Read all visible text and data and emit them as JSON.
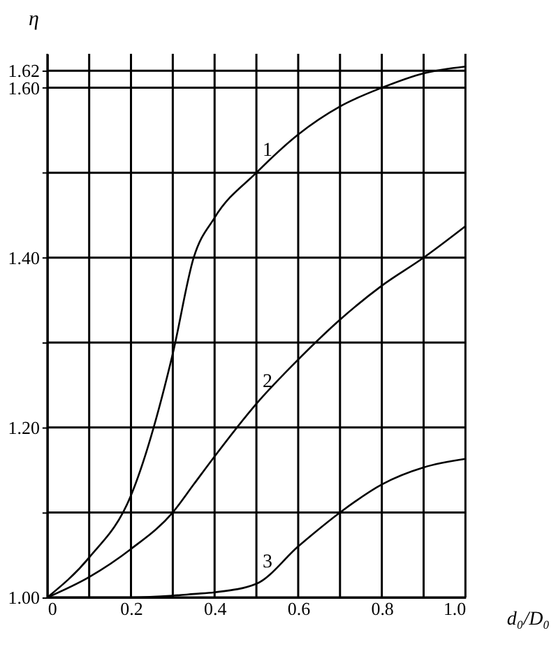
{
  "chart_data": {
    "type": "line",
    "xlabel": "d₀/D₀",
    "ylabel": "η",
    "x": [
      0,
      0.1,
      0.2,
      0.3,
      0.35,
      0.4,
      0.5,
      0.6,
      0.7,
      0.8,
      0.9,
      1.0
    ],
    "series": [
      {
        "name": "1",
        "color": "#000000",
        "values": [
          1.0,
          1.047,
          1.12,
          1.287,
          1.4,
          1.447,
          1.5,
          1.545,
          1.578,
          1.6,
          1.617,
          1.625
        ]
      },
      {
        "name": "2",
        "color": "#000000",
        "values": [
          1.0,
          1.024,
          1.057,
          1.1,
          1.133,
          1.166,
          1.228,
          1.28,
          1.327,
          1.367,
          1.4,
          1.437
        ]
      },
      {
        "name": "3",
        "color": "#000000",
        "values": [
          1.0,
          1.0,
          1.0,
          1.002,
          1.004,
          1.006,
          1.016,
          1.06,
          1.1,
          1.133,
          1.153,
          1.163
        ]
      }
    ],
    "xlim": [
      0,
      1.0
    ],
    "ylim": [
      1.0,
      1.64
    ],
    "xticks": [
      0,
      {
        "value": 0.1,
        "label": null
      },
      0.2,
      {
        "value": 0.3,
        "label": null
      },
      0.4,
      {
        "value": 0.5,
        "label": null
      },
      0.6,
      {
        "value": 0.7,
        "label": null
      },
      0.8,
      {
        "value": 0.9,
        "label": null
      },
      {
        "value": 1.0,
        "label": "1.0"
      }
    ],
    "yticks": [
      {
        "value": 1.0,
        "label": "1.00"
      },
      {
        "value": 1.1,
        "label": null
      },
      {
        "value": 1.2,
        "label": "1.20"
      },
      {
        "value": 1.3,
        "label": null
      },
      {
        "value": 1.4,
        "label": "1.40"
      },
      {
        "value": 1.5,
        "label": null
      },
      {
        "value": 1.6,
        "label": "1.60"
      },
      1.62
    ],
    "grid": true,
    "legend": false,
    "marker": "none",
    "line_style": "solid"
  }
}
